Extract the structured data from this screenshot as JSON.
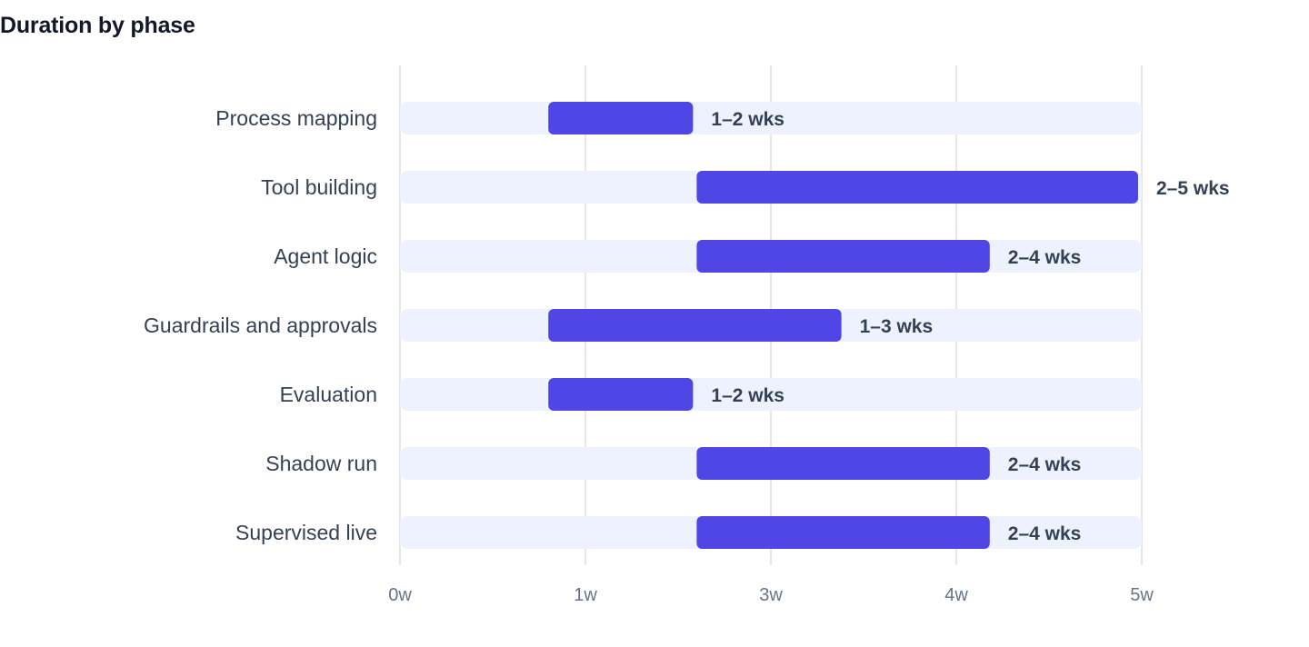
{
  "title": "Duration by phase",
  "chart_data": {
    "type": "bar",
    "orientation": "horizontal",
    "range_bars": true,
    "title": "Duration by phase",
    "xlabel": "",
    "ylabel": "",
    "x_ticks": [
      "0w",
      "1w",
      "3w",
      "4w",
      "5w"
    ],
    "categories": [
      "Process mapping",
      "Tool building",
      "Agent logic",
      "Guardrails and approvals",
      "Evaluation",
      "Shadow run",
      "Supervised live"
    ],
    "series": [
      {
        "values": [
          [
            0.8,
            1.6
          ],
          [
            1.6,
            4.0
          ],
          [
            1.6,
            3.2
          ],
          [
            0.8,
            2.4
          ],
          [
            0.8,
            1.6
          ],
          [
            1.6,
            3.2
          ],
          [
            1.6,
            3.2
          ]
        ],
        "labels": [
          "1–2 wks",
          "2–5 wks",
          "2–4 wks",
          "1–3 wks",
          "1–2 wks",
          "2–4 wks",
          "2–4 wks"
        ]
      }
    ],
    "xlim": [
      0,
      4
    ],
    "grid": true,
    "legend": "none",
    "colors": {
      "bar": "#4f46e5",
      "track": "#eef2ff",
      "grid": "#e5e7eb"
    }
  }
}
